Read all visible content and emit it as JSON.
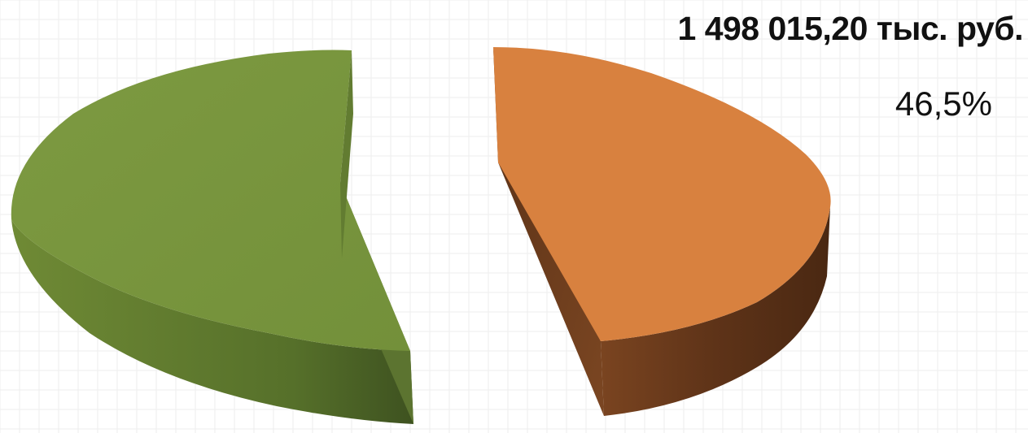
{
  "chart_data": {
    "type": "pie",
    "title": "",
    "slices": [
      {
        "name": "",
        "percent": 53.5,
        "label_value": "",
        "label_percent": "",
        "color_top": "#77933c",
        "color_side": "#4f6228"
      },
      {
        "name": "",
        "percent": 46.5,
        "label_value": "1 498 015,20 тыс. руб.",
        "label_percent": "46,5%",
        "color_top": "#d88140",
        "color_side": "#6b3a1a"
      }
    ],
    "style": "3d-exploded",
    "legend": "none",
    "grid": "faint background grid"
  }
}
